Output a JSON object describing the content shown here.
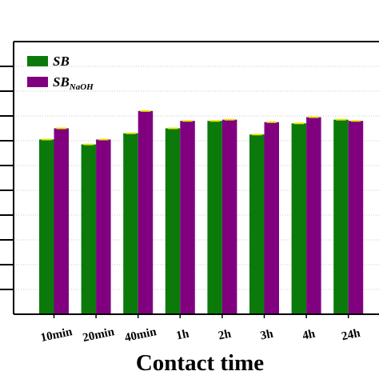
{
  "chart_data": {
    "type": "bar",
    "xlabel": "Contact time",
    "ylabel": "",
    "categories": [
      "10min",
      "20min",
      "40min",
      "1h",
      "2h",
      "3h",
      "4h",
      "24h"
    ],
    "ylim": [
      0,
      22
    ],
    "grid": true,
    "legend_position": "top-left",
    "series": [
      {
        "name": "SB",
        "color": "#0b7a0b",
        "values": [
          14.1,
          13.7,
          14.6,
          15.0,
          15.6,
          14.5,
          15.4,
          15.7
        ]
      },
      {
        "name": "SB_NaOH",
        "color": "#800080",
        "values": [
          15.0,
          14.1,
          16.4,
          15.6,
          15.7,
          15.5,
          15.9,
          15.6
        ]
      }
    ],
    "error_bar_color": "#e8e800",
    "legend": {
      "entries": [
        {
          "base": "SB",
          "sub": ""
        },
        {
          "base": "SB",
          "sub": "NaOH"
        }
      ]
    }
  }
}
